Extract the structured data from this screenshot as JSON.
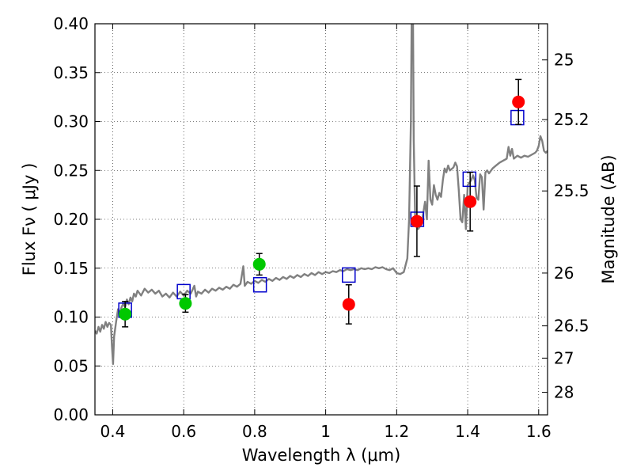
{
  "chart_data": {
    "type": "scatter",
    "xlabel": "Wavelength  λ (μm)",
    "ylabel": "Flux  Fν  ( μJy )",
    "y2label": "Magnitude (AB)",
    "xlim": [
      0.35,
      1.625
    ],
    "ylim": [
      0,
      0.4
    ],
    "x_ticks": [
      0.4,
      0.6,
      0.8,
      1.0,
      1.2,
      1.4,
      1.6
    ],
    "x_tick_labels": [
      "0.4",
      "0.6",
      "0.8",
      "1",
      "1.2",
      "1.4",
      "1.6"
    ],
    "y_ticks": [
      0,
      0.05,
      0.1,
      0.15,
      0.2,
      0.25,
      0.3,
      0.35,
      0.4
    ],
    "y_tick_labels": [
      "0.00",
      "0.05",
      "0.10",
      "0.15",
      "0.20",
      "0.25",
      "0.30",
      "0.35",
      "0.40"
    ],
    "y2_ticks": [
      {
        "label": "25",
        "flux": 0.363
      },
      {
        "label": "25.2",
        "flux": 0.302
      },
      {
        "label": "25.5",
        "flux": 0.229
      },
      {
        "label": "26",
        "flux": 0.145
      },
      {
        "label": "26.5",
        "flux": 0.091
      },
      {
        "label": "27",
        "flux": 0.058
      },
      {
        "label": "28",
        "flux": 0.023
      }
    ],
    "grid": true,
    "colors": {
      "template": "#808080",
      "model": "#0000cc",
      "red_points": "#ff0000",
      "green_points": "#00c800",
      "errorbar": "#000000"
    },
    "series": [
      {
        "kind": "line",
        "points": [
          [
            0.35,
            0.086
          ],
          [
            0.355,
            0.083
          ],
          [
            0.36,
            0.09
          ],
          [
            0.365,
            0.085
          ],
          [
            0.37,
            0.092
          ],
          [
            0.375,
            0.088
          ],
          [
            0.38,
            0.095
          ],
          [
            0.385,
            0.09
          ],
          [
            0.39,
            0.094
          ],
          [
            0.395,
            0.092
          ],
          [
            0.398,
            0.07
          ],
          [
            0.401,
            0.052
          ],
          [
            0.404,
            0.08
          ],
          [
            0.41,
            0.096
          ],
          [
            0.415,
            0.108
          ],
          [
            0.42,
            0.104
          ],
          [
            0.425,
            0.11
          ],
          [
            0.43,
            0.114
          ],
          [
            0.435,
            0.11
          ],
          [
            0.44,
            0.118
          ],
          [
            0.445,
            0.113
          ],
          [
            0.45,
            0.12
          ],
          [
            0.455,
            0.116
          ],
          [
            0.46,
            0.124
          ],
          [
            0.465,
            0.121
          ],
          [
            0.47,
            0.127
          ],
          [
            0.48,
            0.122
          ],
          [
            0.49,
            0.129
          ],
          [
            0.5,
            0.125
          ],
          [
            0.51,
            0.128
          ],
          [
            0.52,
            0.124
          ],
          [
            0.53,
            0.127
          ],
          [
            0.54,
            0.121
          ],
          [
            0.55,
            0.124
          ],
          [
            0.56,
            0.12
          ],
          [
            0.57,
            0.125
          ],
          [
            0.58,
            0.121
          ],
          [
            0.59,
            0.126
          ],
          [
            0.6,
            0.122
          ],
          [
            0.61,
            0.127
          ],
          [
            0.62,
            0.124
          ],
          [
            0.63,
            0.132
          ],
          [
            0.635,
            0.121
          ],
          [
            0.64,
            0.126
          ],
          [
            0.65,
            0.124
          ],
          [
            0.66,
            0.128
          ],
          [
            0.67,
            0.125
          ],
          [
            0.68,
            0.129
          ],
          [
            0.69,
            0.127
          ],
          [
            0.7,
            0.13
          ],
          [
            0.71,
            0.128
          ],
          [
            0.72,
            0.131
          ],
          [
            0.73,
            0.129
          ],
          [
            0.74,
            0.133
          ],
          [
            0.75,
            0.131
          ],
          [
            0.76,
            0.134
          ],
          [
            0.768,
            0.152
          ],
          [
            0.772,
            0.132
          ],
          [
            0.78,
            0.136
          ],
          [
            0.79,
            0.134
          ],
          [
            0.8,
            0.137
          ],
          [
            0.81,
            0.135
          ],
          [
            0.82,
            0.138
          ],
          [
            0.83,
            0.136
          ],
          [
            0.84,
            0.139
          ],
          [
            0.85,
            0.137
          ],
          [
            0.86,
            0.14
          ],
          [
            0.87,
            0.138
          ],
          [
            0.88,
            0.141
          ],
          [
            0.89,
            0.139
          ],
          [
            0.9,
            0.142
          ],
          [
            0.91,
            0.14
          ],
          [
            0.92,
            0.143
          ],
          [
            0.93,
            0.141
          ],
          [
            0.94,
            0.144
          ],
          [
            0.95,
            0.142
          ],
          [
            0.96,
            0.145
          ],
          [
            0.97,
            0.143
          ],
          [
            0.98,
            0.146
          ],
          [
            0.99,
            0.144
          ],
          [
            1.0,
            0.146
          ],
          [
            1.01,
            0.145
          ],
          [
            1.02,
            0.147
          ],
          [
            1.03,
            0.146
          ],
          [
            1.04,
            0.148
          ],
          [
            1.05,
            0.147
          ],
          [
            1.06,
            0.149
          ],
          [
            1.07,
            0.148
          ],
          [
            1.08,
            0.149
          ],
          [
            1.09,
            0.148
          ],
          [
            1.1,
            0.15
          ],
          [
            1.11,
            0.149
          ],
          [
            1.12,
            0.15
          ],
          [
            1.13,
            0.149
          ],
          [
            1.14,
            0.151
          ],
          [
            1.15,
            0.15
          ],
          [
            1.16,
            0.151
          ],
          [
            1.17,
            0.149
          ],
          [
            1.18,
            0.148
          ],
          [
            1.19,
            0.15
          ],
          [
            1.2,
            0.145
          ],
          [
            1.21,
            0.144
          ],
          [
            1.22,
            0.146
          ],
          [
            1.23,
            0.16
          ],
          [
            1.235,
            0.2
          ],
          [
            1.24,
            0.3
          ],
          [
            1.242,
            0.4
          ],
          [
            1.246,
            0.4
          ],
          [
            1.248,
            0.28
          ],
          [
            1.252,
            0.2
          ],
          [
            1.26,
            0.19
          ],
          [
            1.27,
            0.195
          ],
          [
            1.28,
            0.218
          ],
          [
            1.285,
            0.2
          ],
          [
            1.29,
            0.26
          ],
          [
            1.295,
            0.22
          ],
          [
            1.3,
            0.215
          ],
          [
            1.305,
            0.235
          ],
          [
            1.31,
            0.225
          ],
          [
            1.315,
            0.22
          ],
          [
            1.32,
            0.227
          ],
          [
            1.325,
            0.223
          ],
          [
            1.33,
            0.24
          ],
          [
            1.335,
            0.252
          ],
          [
            1.34,
            0.248
          ],
          [
            1.345,
            0.255
          ],
          [
            1.35,
            0.25
          ],
          [
            1.36,
            0.253
          ],
          [
            1.365,
            0.258
          ],
          [
            1.37,
            0.254
          ],
          [
            1.375,
            0.23
          ],
          [
            1.38,
            0.2
          ],
          [
            1.385,
            0.197
          ],
          [
            1.39,
            0.225
          ],
          [
            1.395,
            0.19
          ],
          [
            1.4,
            0.235
          ],
          [
            1.41,
            0.24
          ],
          [
            1.415,
            0.245
          ],
          [
            1.42,
            0.24
          ],
          [
            1.425,
            0.222
          ],
          [
            1.43,
            0.22
          ],
          [
            1.435,
            0.246
          ],
          [
            1.44,
            0.243
          ],
          [
            1.445,
            0.21
          ],
          [
            1.45,
            0.248
          ],
          [
            1.455,
            0.25
          ],
          [
            1.46,
            0.247
          ],
          [
            1.47,
            0.252
          ],
          [
            1.48,
            0.255
          ],
          [
            1.49,
            0.258
          ],
          [
            1.5,
            0.26
          ],
          [
            1.51,
            0.262
          ],
          [
            1.515,
            0.274
          ],
          [
            1.52,
            0.265
          ],
          [
            1.525,
            0.272
          ],
          [
            1.53,
            0.262
          ],
          [
            1.54,
            0.265
          ],
          [
            1.55,
            0.263
          ],
          [
            1.56,
            0.265
          ],
          [
            1.57,
            0.264
          ],
          [
            1.58,
            0.266
          ],
          [
            1.59,
            0.268
          ],
          [
            1.595,
            0.27
          ],
          [
            1.6,
            0.275
          ],
          [
            1.605,
            0.285
          ],
          [
            1.61,
            0.28
          ],
          [
            1.615,
            0.27
          ],
          [
            1.62,
            0.268
          ],
          [
            1.625,
            0.27
          ]
        ]
      },
      {
        "kind": "open-squares",
        "points": [
          [
            0.435,
            0.107
          ],
          [
            0.6,
            0.126
          ],
          [
            0.815,
            0.133
          ],
          [
            1.065,
            0.143
          ],
          [
            1.258,
            0.2
          ],
          [
            1.405,
            0.241
          ],
          [
            1.54,
            0.304
          ]
        ]
      },
      {
        "kind": "filled-circles",
        "color": "green",
        "points": [
          {
            "x": 0.435,
            "y": 0.103,
            "yerr": 0.013
          },
          {
            "x": 0.605,
            "y": 0.114,
            "yerr": 0.009
          },
          {
            "x": 0.813,
            "y": 0.154,
            "yerr": 0.011
          }
        ]
      },
      {
        "kind": "filled-circles",
        "color": "red",
        "points": [
          {
            "x": 1.065,
            "y": 0.113,
            "yerr": 0.02
          },
          {
            "x": 1.257,
            "y": 0.198,
            "yerr": 0.036
          },
          {
            "x": 1.407,
            "y": 0.218,
            "yerr": 0.03
          },
          {
            "x": 1.543,
            "y": 0.32,
            "yerr": 0.023
          }
        ]
      }
    ]
  }
}
